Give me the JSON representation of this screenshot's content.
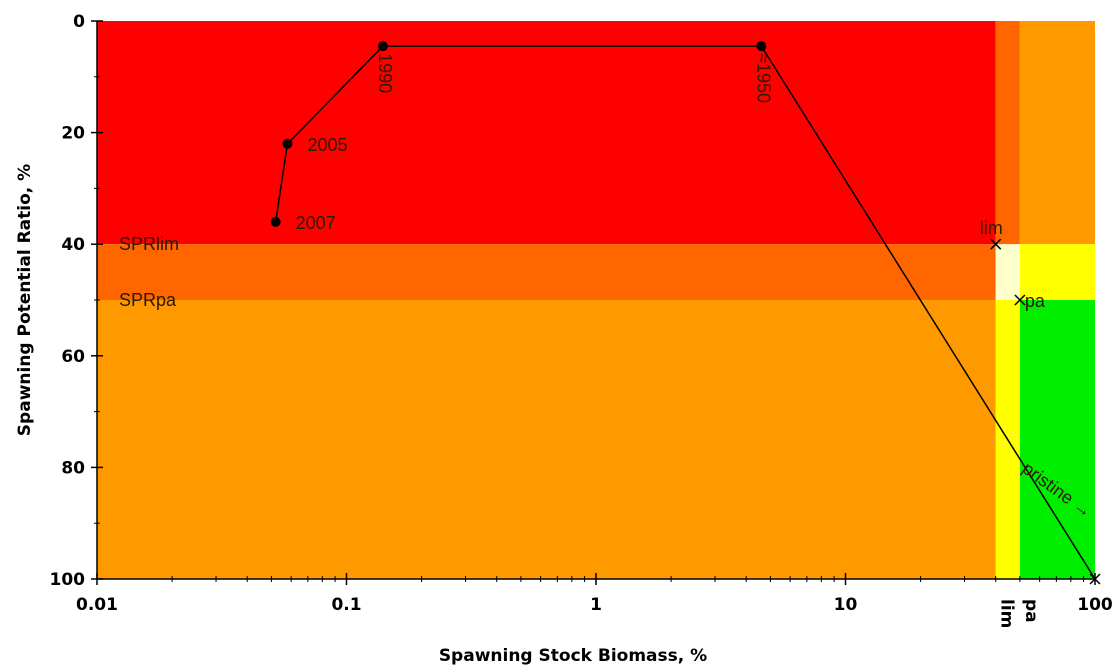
{
  "chart_data": {
    "type": "line",
    "xscale": "log",
    "xlim": [
      0.01,
      100
    ],
    "ylim": [
      0,
      100
    ],
    "y_inverted": true,
    "xlabel": "Spawning Stock Biomass, %",
    "ylabel": "Spawning Potential Ratio, %",
    "xticks": [
      {
        "value": 0.01,
        "label": "0.01"
      },
      {
        "value": 0.1,
        "label": "0.1"
      },
      {
        "value": 1,
        "label": "1"
      },
      {
        "value": 10,
        "label": "10"
      },
      {
        "value": 100,
        "label": "100"
      }
    ],
    "yticks": [
      {
        "value": 0,
        "label": "0"
      },
      {
        "value": 20,
        "label": "20"
      },
      {
        "value": 40,
        "label": "40"
      },
      {
        "value": 60,
        "label": "60"
      },
      {
        "value": 80,
        "label": "80"
      },
      {
        "value": 100,
        "label": "100"
      }
    ],
    "reference_x_labels": [
      {
        "value": 40,
        "label": "lim"
      },
      {
        "value": 50,
        "label": "pa"
      }
    ],
    "reference_y_labels": [
      {
        "value": 40,
        "label": "SPRlim"
      },
      {
        "value": 50,
        "label": "SPRpa"
      }
    ],
    "zones": [
      {
        "x": [
          0.01,
          40
        ],
        "y": [
          0,
          40
        ],
        "color": "#ff0000"
      },
      {
        "x": [
          0.01,
          40
        ],
        "y": [
          40,
          50
        ],
        "color": "#ff6600"
      },
      {
        "x": [
          0.01,
          40
        ],
        "y": [
          50,
          100
        ],
        "color": "#ff9900"
      },
      {
        "x": [
          40,
          50
        ],
        "y": [
          0,
          40
        ],
        "color": "#ff6600"
      },
      {
        "x": [
          40,
          50
        ],
        "y": [
          40,
          50
        ],
        "color": "#ffffcc"
      },
      {
        "x": [
          40,
          50
        ],
        "y": [
          50,
          100
        ],
        "color": "#ffff00"
      },
      {
        "x": [
          50,
          100
        ],
        "y": [
          0,
          40
        ],
        "color": "#ff9900"
      },
      {
        "x": [
          50,
          100
        ],
        "y": [
          40,
          50
        ],
        "color": "#ffff00"
      },
      {
        "x": [
          50,
          100
        ],
        "y": [
          50,
          100
        ],
        "color": "#00ee00"
      }
    ],
    "series": [
      {
        "points": [
          {
            "x": 0.052,
            "y": 36,
            "label": "2007"
          },
          {
            "x": 0.058,
            "y": 22,
            "label": "2005"
          },
          {
            "x": 0.14,
            "y": 4.5,
            "label": "1990"
          },
          {
            "x": 4.6,
            "y": 4.5,
            "label": "≈1950"
          },
          {
            "x": 100,
            "y": 100,
            "label": ""
          }
        ]
      }
    ],
    "reference_points": [
      {
        "x": 40,
        "y": 40,
        "label": "lim"
      },
      {
        "x": 50,
        "y": 50,
        "label": "pa"
      },
      {
        "x": 100,
        "y": 100,
        "label": "pristine →"
      }
    ]
  }
}
